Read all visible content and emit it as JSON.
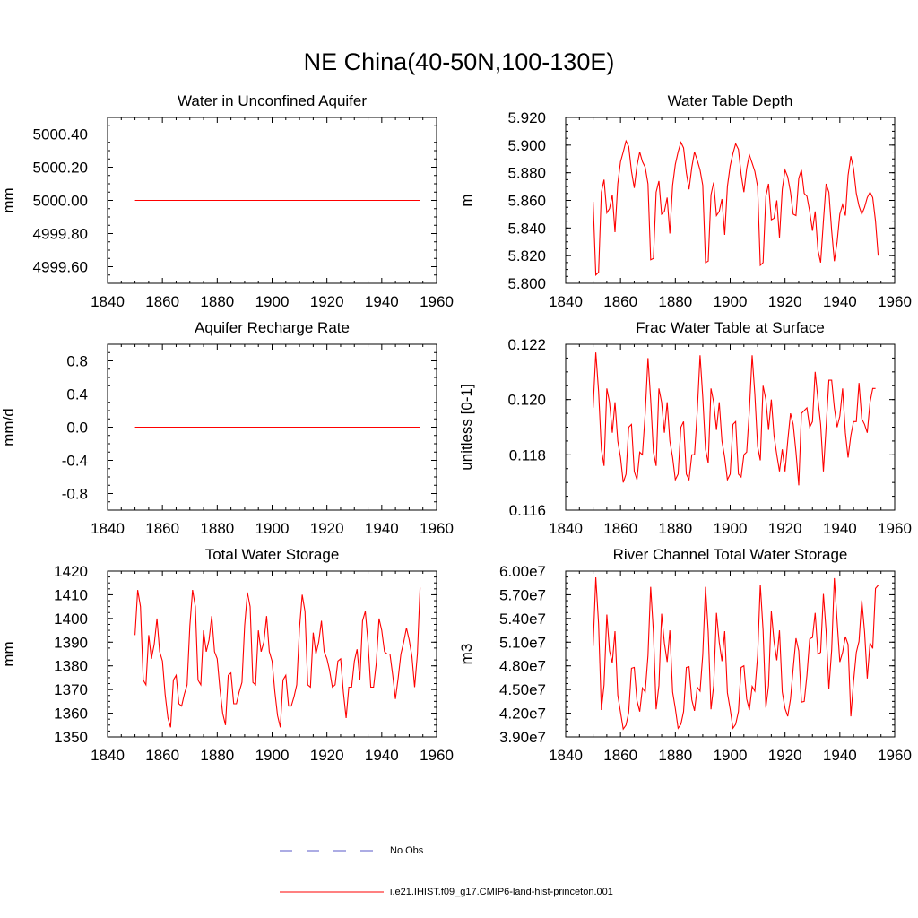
{
  "figure": {
    "title": "NE China(40-50N,100-130E)"
  },
  "legend": {
    "items": [
      {
        "label": "No Obs",
        "color": "#5a5ac8",
        "style": "dashed"
      },
      {
        "label": "i.e21.IHIST.f09_g17.CMIP6-land-hist-princeton.001",
        "color": "#ff0000",
        "style": "solid"
      }
    ]
  },
  "chart_data": [
    {
      "type": "line",
      "title": "Water in Unconfined Aquifer",
      "ylabel": "mm",
      "xlim": [
        1840,
        1960
      ],
      "ylim": [
        4999.5,
        5000.5
      ],
      "xticks": [
        1840,
        1860,
        1880,
        1900,
        1920,
        1940,
        1960
      ],
      "yticks": [
        4999.6,
        4999.8,
        5000.0,
        5000.2,
        5000.4
      ],
      "ytick_labels": [
        "4999.60",
        "4999.80",
        "5000.00",
        "5000.20",
        "5000.40"
      ],
      "color": "#ff0000",
      "x": [
        1850,
        1954
      ],
      "y": [
        5000.0,
        5000.0
      ]
    },
    {
      "type": "line",
      "title": "Water Table Depth",
      "ylabel": "m",
      "xlim": [
        1840,
        1960
      ],
      "ylim": [
        5.8,
        5.92
      ],
      "xticks": [
        1840,
        1860,
        1880,
        1900,
        1920,
        1940,
        1960
      ],
      "yticks": [
        5.8,
        5.82,
        5.84,
        5.86,
        5.88,
        5.9,
        5.92
      ],
      "ytick_labels": [
        "5.800",
        "5.820",
        "5.840",
        "5.860",
        "5.880",
        "5.900",
        "5.920"
      ],
      "color": "#ff0000",
      "x_start": 1850,
      "y": [
        5.859,
        5.806,
        5.808,
        5.866,
        5.875,
        5.851,
        5.854,
        5.864,
        5.837,
        5.872,
        5.888,
        5.895,
        5.903,
        5.899,
        5.881,
        5.869,
        5.885,
        5.895,
        5.888,
        5.884,
        5.872,
        5.817,
        5.818,
        5.866,
        5.874,
        5.85,
        5.852,
        5.862,
        5.836,
        5.871,
        5.886,
        5.895,
        5.902,
        5.898,
        5.88,
        5.868,
        5.884,
        5.895,
        5.889,
        5.882,
        5.871,
        5.815,
        5.816,
        5.864,
        5.873,
        5.849,
        5.852,
        5.861,
        5.835,
        5.87,
        5.885,
        5.894,
        5.901,
        5.897,
        5.879,
        5.866,
        5.883,
        5.893,
        5.887,
        5.881,
        5.87,
        5.813,
        5.815,
        5.863,
        5.872,
        5.846,
        5.847,
        5.86,
        5.833,
        5.868,
        5.882,
        5.877,
        5.866,
        5.85,
        5.849,
        5.876,
        5.882,
        5.865,
        5.863,
        5.852,
        5.838,
        5.852,
        5.824,
        5.815,
        5.845,
        5.872,
        5.866,
        5.838,
        5.816,
        5.83,
        5.85,
        5.857,
        5.849,
        5.878,
        5.892,
        5.883,
        5.865,
        5.856,
        5.85,
        5.855,
        5.862,
        5.866,
        5.862,
        5.845,
        5.82
      ]
    },
    {
      "type": "line",
      "title": "Aquifer Recharge Rate",
      "ylabel": "mm/d",
      "xlim": [
        1840,
        1960
      ],
      "ylim": [
        -1.0,
        1.0
      ],
      "xticks": [
        1840,
        1860,
        1880,
        1900,
        1920,
        1940,
        1960
      ],
      "yticks": [
        -0.8,
        -0.4,
        0.0,
        0.4,
        0.8
      ],
      "ytick_labels": [
        "-0.8",
        "-0.4",
        "0.0",
        "0.4",
        "0.8"
      ],
      "color": "#ff0000",
      "x": [
        1850,
        1954
      ],
      "y": [
        0.0,
        0.0
      ]
    },
    {
      "type": "line",
      "title": "Frac Water Table at Surface",
      "ylabel": "unitless [0-1]",
      "xlim": [
        1840,
        1960
      ],
      "ylim": [
        0.116,
        0.122
      ],
      "xticks": [
        1840,
        1860,
        1880,
        1900,
        1920,
        1940,
        1960
      ],
      "yticks": [
        0.116,
        0.118,
        0.12,
        0.122
      ],
      "ytick_labels": [
        "0.116",
        "0.118",
        "0.120",
        "0.122"
      ],
      "color": "#ff0000",
      "x_start": 1850,
      "y": [
        0.1197,
        0.1217,
        0.1203,
        0.1182,
        0.1176,
        0.1204,
        0.1199,
        0.1188,
        0.1199,
        0.1185,
        0.1179,
        0.117,
        0.1173,
        0.119,
        0.1191,
        0.1174,
        0.1171,
        0.1181,
        0.118,
        0.1195,
        0.1215,
        0.12,
        0.1181,
        0.1176,
        0.1204,
        0.1199,
        0.1188,
        0.1199,
        0.1185,
        0.1179,
        0.1171,
        0.1173,
        0.119,
        0.1192,
        0.1173,
        0.1171,
        0.118,
        0.118,
        0.1196,
        0.1216,
        0.1201,
        0.1182,
        0.1177,
        0.1204,
        0.1199,
        0.1189,
        0.1199,
        0.1185,
        0.1179,
        0.1171,
        0.1173,
        0.1191,
        0.1192,
        0.1173,
        0.1172,
        0.118,
        0.1181,
        0.1196,
        0.1216,
        0.1202,
        0.1183,
        0.1178,
        0.1205,
        0.12,
        0.1189,
        0.12,
        0.1187,
        0.118,
        0.1174,
        0.1182,
        0.1174,
        0.1185,
        0.1195,
        0.1191,
        0.1181,
        0.1169,
        0.1195,
        0.1196,
        0.1197,
        0.119,
        0.1192,
        0.121,
        0.12,
        0.1191,
        0.1174,
        0.119,
        0.1207,
        0.1207,
        0.1197,
        0.119,
        0.1194,
        0.1204,
        0.1188,
        0.1179,
        0.1187,
        0.1192,
        0.1192,
        0.1206,
        0.1193,
        0.1191,
        0.1188,
        0.1199,
        0.1204,
        0.1204
      ]
    },
    {
      "type": "line",
      "title": "Total Water Storage",
      "ylabel": "mm",
      "xlim": [
        1840,
        1960
      ],
      "ylim": [
        1350,
        1420
      ],
      "xticks": [
        1840,
        1860,
        1880,
        1900,
        1920,
        1940,
        1960
      ],
      "yticks": [
        1350,
        1360,
        1370,
        1380,
        1390,
        1400,
        1410,
        1420
      ],
      "ytick_labels": [
        "1350",
        "1360",
        "1370",
        "1380",
        "1390",
        "1400",
        "1410",
        "1420"
      ],
      "color": "#ff0000",
      "x_start": 1850,
      "y": [
        1393,
        1412,
        1405,
        1374,
        1372,
        1393,
        1383,
        1389,
        1400,
        1386,
        1382,
        1368,
        1358,
        1354,
        1374,
        1376,
        1364,
        1363,
        1368,
        1372,
        1397,
        1412,
        1405,
        1374,
        1372,
        1395,
        1386,
        1391,
        1401,
        1386,
        1383,
        1370,
        1360,
        1355,
        1376,
        1377,
        1364,
        1364,
        1369,
        1373,
        1397,
        1411,
        1405,
        1373,
        1372,
        1395,
        1386,
        1390,
        1401,
        1386,
        1382,
        1369,
        1359,
        1354,
        1374,
        1376,
        1363,
        1363,
        1367,
        1372,
        1396,
        1410,
        1403,
        1372,
        1371,
        1394,
        1385,
        1390,
        1399,
        1386,
        1383,
        1378,
        1371,
        1372,
        1382,
        1383,
        1369,
        1358,
        1371,
        1371,
        1382,
        1387,
        1374,
        1399,
        1403,
        1390,
        1371,
        1371,
        1381,
        1400,
        1395,
        1386,
        1385,
        1385,
        1376,
        1366,
        1375,
        1385,
        1390,
        1396,
        1391,
        1384,
        1371,
        1385,
        1413
      ]
    },
    {
      "type": "line",
      "title": "River Channel Total Water Storage",
      "ylabel": "m3",
      "xlim": [
        1840,
        1960
      ],
      "ylim": [
        39000000,
        60000000
      ],
      "xticks": [
        1840,
        1860,
        1880,
        1900,
        1920,
        1940,
        1960
      ],
      "yticks": [
        39000000,
        42000000,
        45000000,
        48000000,
        51000000,
        54000000,
        57000000,
        60000000
      ],
      "ytick_labels": [
        "3.90e7",
        "4.20e7",
        "4.50e7",
        "4.80e7",
        "5.10e7",
        "5.40e7",
        "5.70e7",
        "6.00e7"
      ],
      "color": "#ff0000",
      "x_start": 1850,
      "y": [
        50500000,
        59200000,
        53300000,
        42400000,
        45600000,
        54500000,
        49900000,
        48400000,
        52400000,
        44300000,
        42100000,
        40000000,
        40500000,
        42100000,
        47700000,
        47800000,
        43600000,
        42200000,
        45200000,
        44700000,
        49300000,
        58000000,
        52200000,
        42500000,
        45500000,
        54600000,
        50900000,
        48500000,
        52500000,
        44700000,
        42600000,
        40100000,
        40600000,
        42200000,
        47800000,
        47900000,
        43700000,
        42300000,
        45300000,
        44800000,
        49400000,
        58000000,
        52300000,
        42500000,
        45500000,
        54700000,
        51000000,
        48600000,
        52400000,
        44600000,
        42500000,
        40100000,
        40600000,
        42200000,
        47800000,
        48000000,
        43800000,
        42400000,
        45400000,
        44800000,
        49300000,
        58300000,
        52500000,
        42700000,
        45500000,
        54900000,
        51100000,
        48700000,
        52500000,
        44700000,
        42600000,
        41600000,
        43800000,
        47700000,
        51500000,
        49900000,
        43400000,
        43500000,
        46800000,
        51400000,
        51600000,
        54700000,
        49500000,
        49700000,
        57100000,
        52400000,
        45100000,
        50000000,
        59100000,
        53600000,
        48500000,
        49700000,
        51700000,
        50700000,
        41600000,
        46000000,
        49700000,
        51100000,
        56300000,
        52300000,
        46400000,
        50900000,
        50200000,
        57800000,
        58200000
      ]
    }
  ]
}
